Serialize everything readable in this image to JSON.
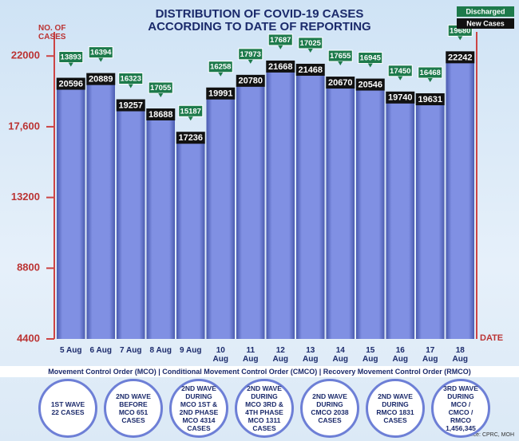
{
  "chart_data": {
    "type": "bar",
    "title": "DISTRIBUTION OF COVID-19 CASES ACCORDING TO DATE OF REPORTING",
    "y_label": "NO. OF CASES",
    "x_label": "DATE",
    "categories": [
      "5 Aug",
      "6 Aug",
      "7 Aug",
      "8 Aug",
      "9 Aug",
      "10 Aug",
      "11 Aug",
      "12 Aug",
      "13 Aug",
      "14 Aug",
      "15 Aug",
      "16 Aug",
      "17 Aug",
      "18 Aug"
    ],
    "series": [
      {
        "name": "Discharged",
        "color": "#1d7a4b",
        "values": [
          13893,
          16394,
          16323,
          17055,
          15187,
          16258,
          17973,
          17687,
          17025,
          17655,
          16945,
          17450,
          16468,
          19680
        ]
      },
      {
        "name": "New Cases",
        "color": "#111111",
        "values": [
          20596,
          20889,
          19257,
          18688,
          17236,
          19991,
          20780,
          21668,
          21468,
          20670,
          20546,
          19740,
          19631,
          22242
        ]
      }
    ],
    "bar_color": "#7d8de0",
    "ylim": [
      4400,
      23500
    ],
    "yticks": [
      4400,
      8800,
      13200,
      {
        "value": 17600,
        "label": "17,600"
      },
      22000
    ],
    "grid": false
  },
  "footer": {
    "note": "Movement Control Order (MCO) | Conditional Movement Control Order (CMCO) | Recovery Movement Control Order (RMCO)",
    "waves": [
      "1ST WAVE 22 CASES",
      "2ND WAVE BEFORE MCO 651 CASES",
      "2ND WAVE DURING MCO 1ST & 2ND PHASE MCO 4314 CASES",
      "2ND WAVE DURING MCO 3RD & 4TH PHASE MCO 1311 CASES",
      "2ND WAVE DURING CMCO 2038 CASES",
      "2ND WAVE DURING RMCO 1831 CASES",
      "3RD WAVE DURING MCO / CMCO / RMCO 1,456,345"
    ],
    "source": "Source: CPRC, MOH"
  }
}
